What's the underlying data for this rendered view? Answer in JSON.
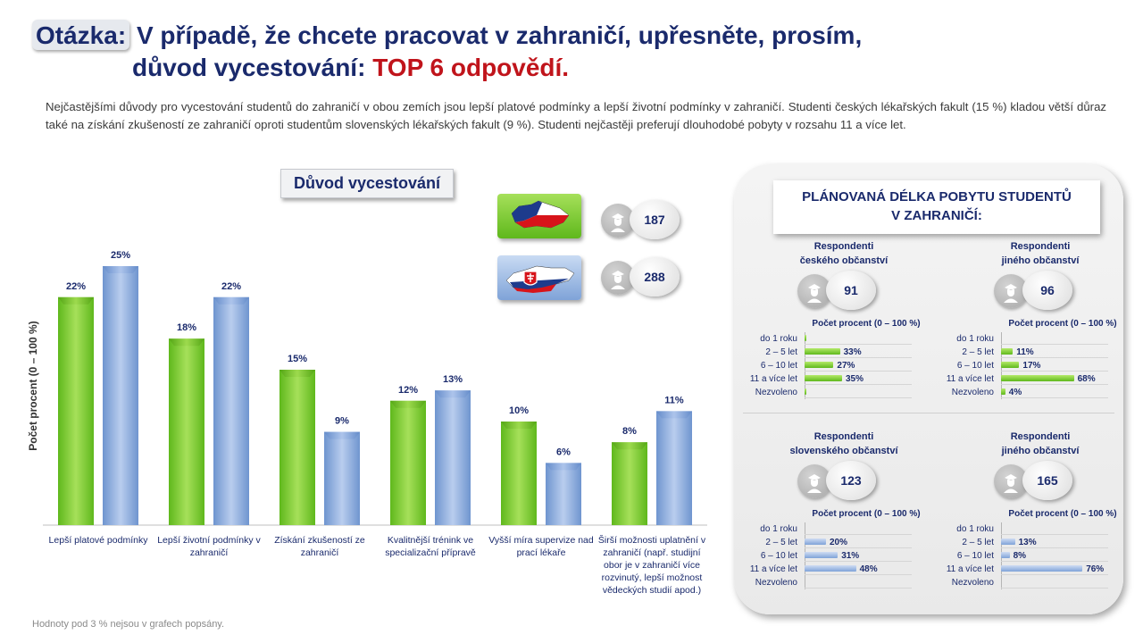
{
  "title": {
    "question_label": "Otázka:",
    "line1": "V případě, že chcete pracovat v zahraničí, upřesněte, prosím,",
    "line2_prefix": "důvod vycestování:",
    "line2_highlight": "TOP 6 odpovědí."
  },
  "intro": "Nejčastějšími důvody pro vycestování studentů do zahraničí v obou zemích jsou lepší platové podmínky a lepší životní podmínky v zahraničí. Studenti českých lékařských fakult (15 %) kladou větší důraz také na získání zkušeností ze zahraničí oproti studentům slovenských lékařských fakult (9 %). Studenti nejčastěji preferují dlouhodobé pobyty v rozsahu 11 a více let.",
  "respondents": {
    "cz": {
      "icon": "czech-map-icon",
      "count": "187"
    },
    "sk": {
      "icon": "slovak-map-icon",
      "count": "288"
    }
  },
  "colors": {
    "green": "#7ccf2a",
    "blue": "#8fb0e0",
    "navy": "#1a2a6c",
    "red": "#c0141b"
  },
  "chart_data": {
    "type": "bar",
    "title": "Důvod vycestování",
    "ylabel": "Počet procent (0 – 100 %)",
    "ylim": [
      0,
      25
    ],
    "categories": [
      "Lepší platové podmínky",
      "Lepší životní podmínky v zahraničí",
      "Získání zkušeností ze zahraničí",
      "Kvalitnější trénink ve specializační přípravě",
      "Vyšší míra supervize nad prací lékaře",
      "Širší možnosti uplatnění v zahraničí (např. studijní obor je v zahraničí více rozvinutý, lepší možnost vědeckých studií apod.)"
    ],
    "series": [
      {
        "color": "green",
        "values": [
          22,
          18,
          15,
          12,
          10,
          8
        ],
        "labels": [
          "22%",
          "18%",
          "15%",
          "12%",
          "10%",
          "8%"
        ]
      },
      {
        "color": "blue",
        "values": [
          25,
          22,
          9,
          13,
          6,
          11
        ],
        "labels": [
          "25%",
          "22%",
          "9%",
          "13%",
          "6%",
          "11%"
        ]
      }
    ]
  },
  "side_panel": {
    "title_line1": "PLÁNOVANÁ DÉLKA POBYTU STUDENTŮ",
    "title_line2": "V ZAHRANIČÍ:",
    "axis_caption": "Počet procent  (0 – 100 %)",
    "row_labels": [
      "do 1 roku",
      "2 – 5 let",
      "6 – 10 let",
      "11 a více let",
      "Nezvoleno"
    ],
    "groups": [
      {
        "head1": "Respondenti",
        "head2": "českého občanství",
        "count": "91",
        "color": "green",
        "values": [
          1,
          33,
          27,
          35,
          1
        ],
        "labels": [
          "",
          "33%",
          "27%",
          "35%",
          ""
        ]
      },
      {
        "head1": "Respondenti",
        "head2": "jiného občanství",
        "count": "96",
        "color": "green",
        "values": [
          0,
          11,
          17,
          68,
          4
        ],
        "labels": [
          "",
          "11%",
          "17%",
          "68%",
          "4%"
        ]
      },
      {
        "head1": "Respondenti",
        "head2": "slovenského občanství",
        "count": "123",
        "color": "blue",
        "values": [
          0,
          20,
          31,
          48,
          0
        ],
        "labels": [
          "",
          "20%",
          "31%",
          "48%",
          ""
        ]
      },
      {
        "head1": "Respondenti",
        "head2": "jiného občanství",
        "count": "165",
        "color": "blue",
        "values": [
          0,
          13,
          8,
          76,
          0
        ],
        "labels": [
          "",
          "13%",
          "8%",
          "76%",
          ""
        ]
      }
    ]
  },
  "footnote": "Hodnoty pod 3 % nejsou v grafech popsány."
}
